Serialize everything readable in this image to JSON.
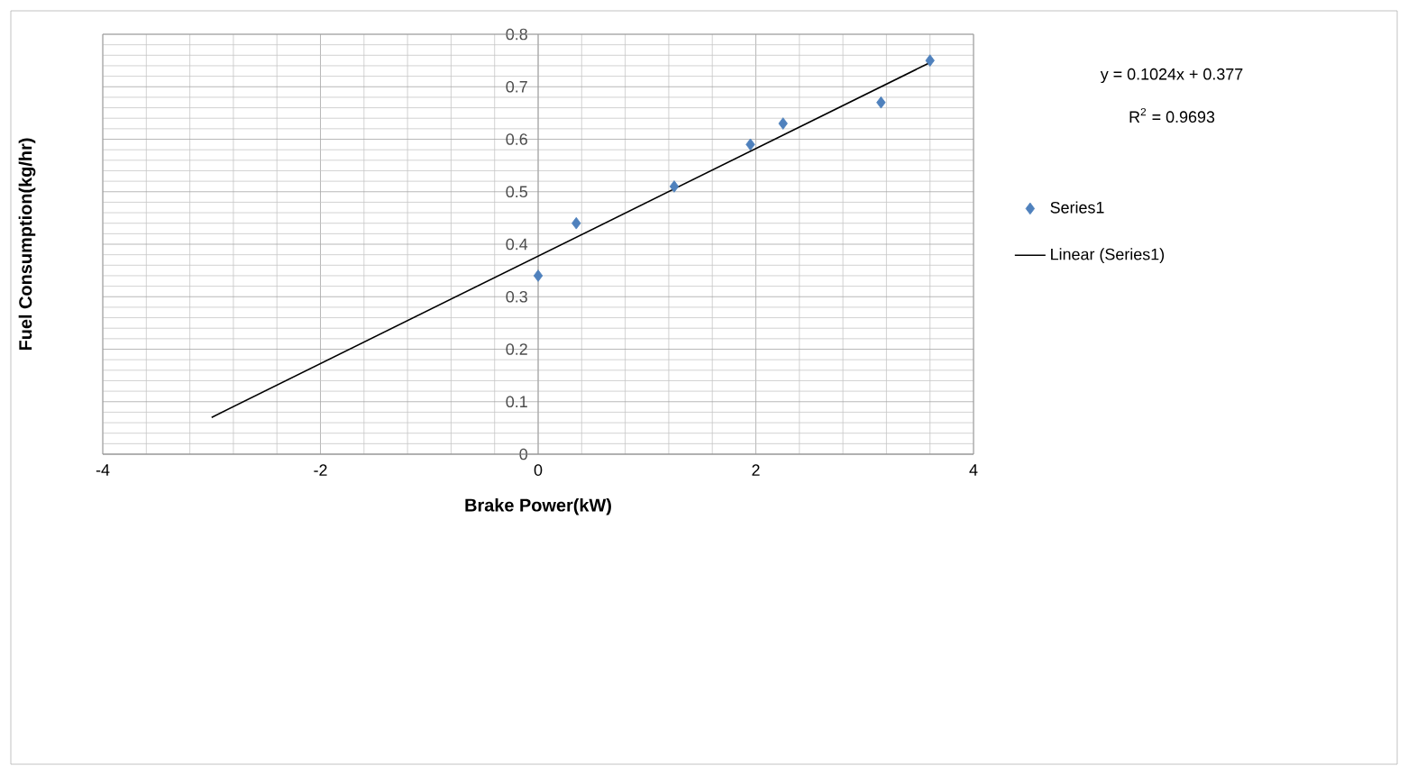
{
  "chart_data": {
    "type": "scatter",
    "xlabel": "Brake Power(kW)",
    "ylabel": "Fuel Consumption(kg/hr)",
    "annotations": [
      "y = 0.1024x + 0.377",
      "R$^{2}$ = 0.9693"
    ],
    "xlim": [
      -4,
      4
    ],
    "ylim": [
      0,
      0.8
    ],
    "xticks": [
      -4,
      -2,
      0,
      2,
      4
    ],
    "yticks": [
      0,
      0.1,
      0.2,
      0.3,
      0.4,
      0.5,
      0.6,
      0.7,
      0.8
    ],
    "grid": true,
    "legend": "right",
    "marker": "diamond",
    "series": [
      {
        "name": "Series1",
        "color": "#4f81bd",
        "x": [
          0,
          0.35,
          1.25,
          1.95,
          2.25,
          3.15,
          3.6
        ],
        "values": [
          0.34,
          0.44,
          0.51,
          0.59,
          0.63,
          0.67,
          0.75
        ]
      },
      {
        "name": "Linear (Series1)",
        "type": "line",
        "marker": "none",
        "line_style": "solid",
        "color": "#000000",
        "x": [
          -3,
          3.6
        ],
        "values": [
          0.07,
          0.746
        ]
      }
    ]
  }
}
